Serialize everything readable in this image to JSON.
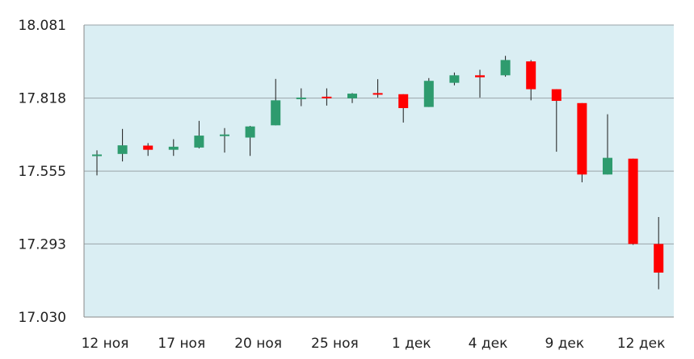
{
  "chart_data": {
    "type": "candlestick",
    "ylim": [
      17.03,
      18.081
    ],
    "y_ticks": [
      "18.081",
      "17.818",
      "17.555",
      "17.293",
      "17.030"
    ],
    "x_tick_labels": [
      {
        "index": 0,
        "label": "12 ноя"
      },
      {
        "index": 3,
        "label": "17 ноя"
      },
      {
        "index": 6,
        "label": "20 ноя"
      },
      {
        "index": 9,
        "label": "25 ноя"
      },
      {
        "index": 12,
        "label": "1 дек"
      },
      {
        "index": 15,
        "label": "4 дек"
      },
      {
        "index": 18,
        "label": "9 дек"
      },
      {
        "index": 21,
        "label": "12 дек"
      }
    ],
    "grid": true,
    "colors": {
      "up": "#2e9b6e",
      "down": "#ff0000",
      "plot_bg": "#daeef3",
      "grid": "#9aa4a8",
      "wick": "#1a1a1a"
    },
    "candles": [
      {
        "open": 17.61,
        "close": 17.615,
        "high": 17.63,
        "low": 17.54
      },
      {
        "open": 17.617,
        "close": 17.648,
        "high": 17.707,
        "low": 17.59
      },
      {
        "open": 17.647,
        "close": 17.632,
        "high": 17.656,
        "low": 17.61
      },
      {
        "open": 17.632,
        "close": 17.643,
        "high": 17.67,
        "low": 17.61
      },
      {
        "open": 17.64,
        "close": 17.683,
        "high": 17.736,
        "low": 17.637
      },
      {
        "open": 17.685,
        "close": 17.687,
        "high": 17.71,
        "low": 17.622
      },
      {
        "open": 17.676,
        "close": 17.716,
        "high": 17.718,
        "low": 17.61
      },
      {
        "open": 17.72,
        "close": 17.81,
        "high": 17.887,
        "low": 17.72
      },
      {
        "open": 17.817,
        "close": 17.82,
        "high": 17.853,
        "low": 17.789
      },
      {
        "open": 17.823,
        "close": 17.818,
        "high": 17.853,
        "low": 17.791
      },
      {
        "open": 17.817,
        "close": 17.834,
        "high": 17.836,
        "low": 17.8
      },
      {
        "open": 17.836,
        "close": 17.834,
        "high": 17.886,
        "low": 17.82
      },
      {
        "open": 17.832,
        "close": 17.782,
        "high": 17.832,
        "low": 17.73
      },
      {
        "open": 17.786,
        "close": 17.88,
        "high": 17.89,
        "low": 17.786
      },
      {
        "open": 17.873,
        "close": 17.9,
        "high": 17.91,
        "low": 17.864
      },
      {
        "open": 17.9,
        "close": 17.893,
        "high": 17.92,
        "low": 17.82
      },
      {
        "open": 17.9,
        "close": 17.955,
        "high": 17.97,
        "low": 17.895
      },
      {
        "open": 17.95,
        "close": 17.85,
        "high": 17.955,
        "low": 17.81
      },
      {
        "open": 17.85,
        "close": 17.808,
        "high": 17.85,
        "low": 17.625
      },
      {
        "open": 17.8,
        "close": 17.543,
        "high": 17.8,
        "low": 17.515
      },
      {
        "open": 17.543,
        "close": 17.603,
        "high": 17.76,
        "low": 17.543
      },
      {
        "open": 17.6,
        "close": 17.293,
        "high": 17.6,
        "low": 17.29
      },
      {
        "open": 17.293,
        "close": 17.19,
        "high": 17.39,
        "low": 17.13
      }
    ]
  }
}
